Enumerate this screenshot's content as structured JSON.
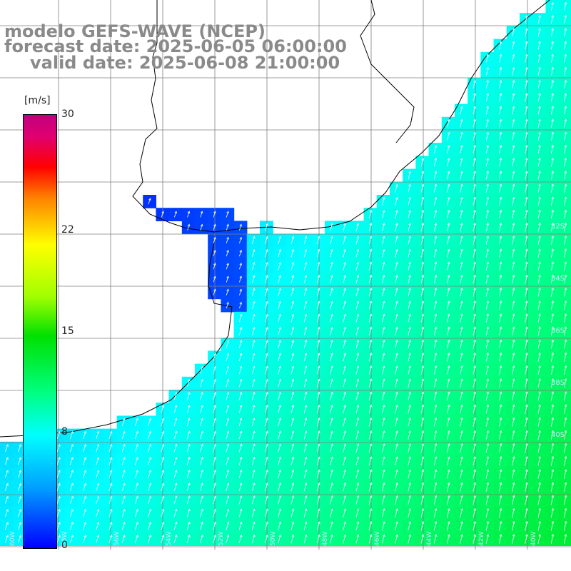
{
  "title": {
    "line1": "modelo GEFS-WAVE (NCEP)",
    "line2": "forecast date: 2025-06-05 06:00:00",
    "line3": "valid date: 2025-06-08 21:00:00"
  },
  "colorbar": {
    "unit": "[m/s]",
    "ticks": [
      "30",
      "22",
      "15",
      "8",
      "0"
    ],
    "tick_values": [
      30,
      22,
      15,
      8,
      0
    ],
    "range": [
      0,
      30
    ]
  },
  "map": {
    "variable": "wind speed",
    "arrow_color": "#ffffff",
    "coast_color": "#000000",
    "grid_color": "#7f7f7f",
    "right_labels": [
      "32S",
      "34S",
      "36S",
      "38S",
      "40S"
    ],
    "bottom_labels": [
      "60W",
      "58W",
      "56W",
      "54W",
      "52W",
      "50W",
      "48W",
      "46W",
      "44W",
      "42W",
      "40W"
    ]
  }
}
